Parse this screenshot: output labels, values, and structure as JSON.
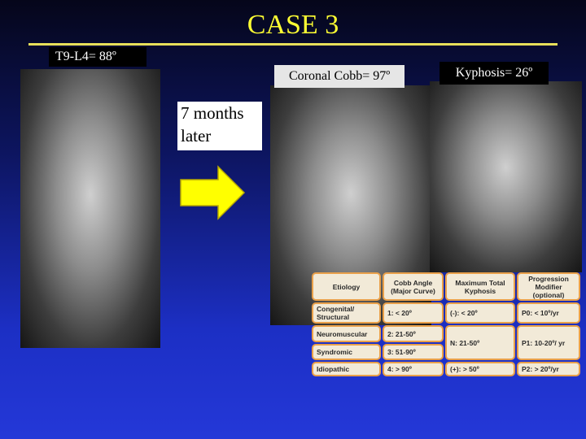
{
  "title": "CASE 3",
  "labels": {
    "before_curve": "T9-L4= 88º",
    "coronal_cobb": "Coronal Cobb= 97º",
    "kyphosis": "Kyphosis= 26º",
    "interval": "7 months later"
  },
  "table": {
    "columns": [
      {
        "header": "Etiology",
        "cells": [
          "Congenital/ Structural",
          "Neuromuscular",
          "Syndromic",
          "Idiopathic"
        ]
      },
      {
        "header": "Cobb Angle (Major Curve)",
        "cells": [
          "1: < 20º",
          "2: 21-50º",
          "3: 51-90º",
          "4: > 90º"
        ]
      },
      {
        "header": "Maximum Total Kyphosis",
        "cells": [
          "(-): < 20º",
          "N: 21-50º",
          "(+): > 50º"
        ]
      },
      {
        "header": "Progression Modifier (optional)",
        "cells": [
          "P0: < 10º/yr",
          "P1: 10-20º/ yr",
          "P2: > 20º/yr"
        ]
      }
    ]
  }
}
